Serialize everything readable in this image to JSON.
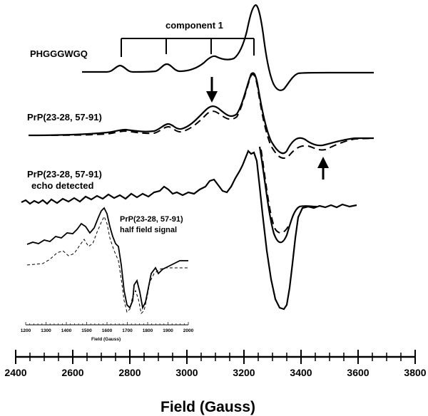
{
  "chart_data": {
    "type": "line",
    "title": "",
    "xlabel": "Field (Gauss)",
    "xlim": [
      2400,
      3800
    ],
    "x_ticks": [
      2400,
      2600,
      2800,
      3000,
      3200,
      3400,
      3600,
      3800
    ],
    "labels": {
      "component": "component 1",
      "trace1": "PHGGGWGQ",
      "trace2": "PrP(23-28, 57-91)",
      "trace3_line1": "PrP(23-28, 57-91)",
      "trace3_line2": "echo detected",
      "inset_line1": "PrP(23-28, 57-91)",
      "inset_line2": "half field signal"
    },
    "component_markers_gauss": [
      2780,
      2935,
      3095,
      3245
    ],
    "arrows_gauss": [
      3095,
      3490
    ],
    "inset": {
      "xlabel": "Field (Gauss)",
      "xlim": [
        1200,
        2000
      ],
      "x_ticks": [
        1200,
        1300,
        1400,
        1500,
        1600,
        1700,
        1800,
        1900,
        2000
      ]
    }
  }
}
